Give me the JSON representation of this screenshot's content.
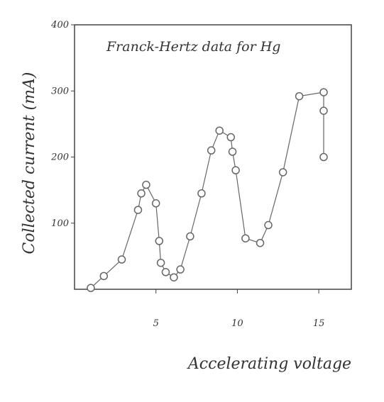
{
  "chart_data": {
    "type": "scatter",
    "title": "Franck-Hertz data for Hg",
    "x_label": "Accelerating voltage",
    "y_label": "Collected current (mA)",
    "x": [
      1,
      1.8,
      2.9,
      3.9,
      4.1,
      4.4,
      5.0,
      5.2,
      5.3,
      5.6,
      6.1,
      6.5,
      7.1,
      7.8,
      8.4,
      8.9,
      9.6,
      9.7,
      9.9,
      10.5,
      11.4,
      11.9,
      12.8,
      13.8,
      15.3,
      15.3,
      15.3
    ],
    "values": [
      2,
      20,
      45,
      120,
      145,
      158,
      130,
      73,
      40,
      26,
      18,
      30,
      80,
      145,
      210,
      240,
      230,
      208,
      180,
      77,
      70,
      97,
      177,
      292,
      298,
      270,
      200
    ],
    "color": "#666666",
    "xlim": [
      0,
      17
    ],
    "ylim": [
      0,
      400
    ],
    "xticks": [
      5,
      10,
      15
    ],
    "yticks": [
      100,
      200,
      300,
      400
    ]
  }
}
